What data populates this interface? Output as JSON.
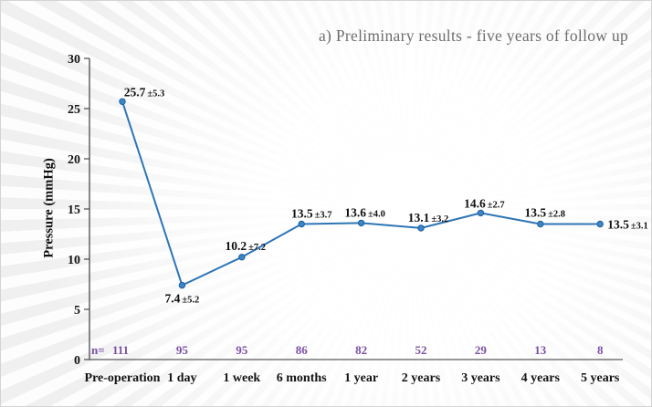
{
  "title": "a) Preliminary results - five years of follow up",
  "colors": {
    "line": "#2e75b6",
    "marker_fill": "#3d86c6",
    "marker_stroke": "#1b5e9e",
    "n_row": "#7a4fa3",
    "axis": "#4a4a4a",
    "title_text": "#6e6e6e",
    "label_text": "#101010"
  },
  "chart_data": {
    "type": "line",
    "title": "a) Preliminary results - five years of follow up",
    "xlabel": "",
    "ylabel": "Pressure (mmHg)",
    "ylim": [
      0,
      30
    ],
    "yticks": [
      0,
      5,
      10,
      15,
      20,
      25,
      30
    ],
    "grid": false,
    "legend": "none",
    "categories": [
      "Pre-operation",
      "1 day",
      "1 week",
      "6 months",
      "1 year",
      "2 years",
      "3 years",
      "4 years",
      "5 years"
    ],
    "series": [
      {
        "name": "Pressure (mmHg)",
        "values": [
          25.7,
          7.4,
          10.2,
          13.5,
          13.6,
          13.1,
          14.6,
          13.5,
          13.5
        ],
        "sd": [
          5.3,
          5.2,
          7.2,
          3.7,
          4.0,
          3.2,
          2.7,
          2.8,
          3.1
        ]
      }
    ],
    "point_labels": [
      "25.7±5.3",
      "7.4 ±5.2",
      "10.2±7.2",
      "13.5±3.7",
      "13.6±4.0",
      "13.1±3.2",
      "14.6 ±2.7",
      "13.5 ±2.8",
      "13.5±3.1"
    ],
    "n_row": {
      "prefix": "n=",
      "values": [
        111,
        95,
        95,
        86,
        82,
        52,
        29,
        13,
        8
      ]
    }
  }
}
